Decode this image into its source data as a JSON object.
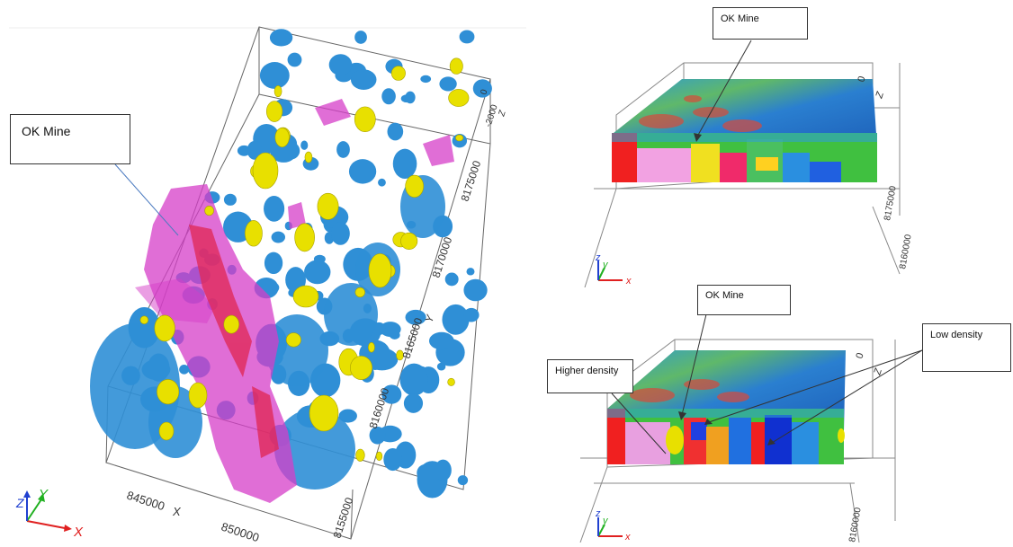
{
  "left_panel": {
    "callout": "OK Mine",
    "axis_labels": {
      "x": "X",
      "y": "Y",
      "z": "Z"
    },
    "x_ticks": [
      "845000",
      "850000"
    ],
    "y_ticks": [
      "8155000",
      "8160000",
      "8165000",
      "8170000",
      "8175000"
    ],
    "z_ticks": [
      "0",
      "-2000"
    ],
    "triad": {
      "x": "X",
      "y": "Y",
      "z": "Z"
    }
  },
  "right_top": {
    "callout": "OK Mine",
    "z_label": "Z",
    "z_tick": "0",
    "y_ticks": [
      "8175000",
      "8160000"
    ],
    "triad": {
      "x": "x",
      "y": "y",
      "z": "z"
    }
  },
  "right_bottom": {
    "callouts": {
      "ok_mine": "OK Mine",
      "higher_density": "Higher density",
      "low_density": "Low density"
    },
    "z_label": "Z",
    "z_tick": "0",
    "y_tick": "8160000",
    "triad": {
      "x": "x",
      "y": "y",
      "z": "z"
    }
  },
  "colors": {
    "blue_body": "#2f8fd6",
    "magenta_body": "#d63ec8",
    "yellow_body": "#e8e000",
    "axis_x": "#e02020",
    "axis_y": "#20b020",
    "axis_z": "#2040d0"
  }
}
